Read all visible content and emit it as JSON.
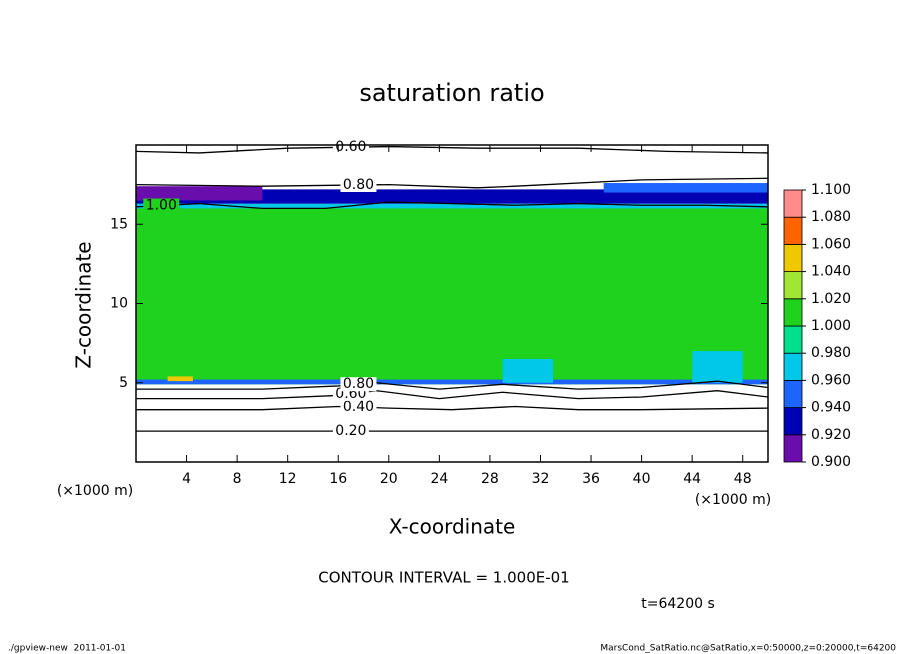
{
  "chart_data": {
    "type": "contour",
    "title": "saturation ratio",
    "x_label": "X-coordinate",
    "y_label": "Z-coordinate",
    "x_unit": "(×1000 m)",
    "xlim": [
      0,
      50
    ],
    "xticks": [
      4,
      8,
      12,
      16,
      20,
      24,
      28,
      32,
      36,
      40,
      44,
      48
    ],
    "ylim": [
      0,
      20
    ],
    "yticks": [
      5,
      10,
      15
    ],
    "levels": [
      {
        "value": 0.9,
        "label": "0.900"
      },
      {
        "value": 0.92,
        "label": "0.920"
      },
      {
        "value": 0.94,
        "label": "0.940"
      },
      {
        "value": 0.96,
        "label": "0.960"
      },
      {
        "value": 0.98,
        "label": "0.980"
      },
      {
        "value": 1.0,
        "label": "1.000"
      },
      {
        "value": 1.02,
        "label": "1.020"
      },
      {
        "value": 1.04,
        "label": "1.040"
      },
      {
        "value": 1.06,
        "label": "1.060"
      },
      {
        "value": 1.08,
        "label": "1.080"
      },
      {
        "value": 1.1,
        "label": "1.100"
      }
    ],
    "colors": [
      "#6a0dad",
      "#0000b4",
      "#1e64ff",
      "#00c8e6",
      "#00e08c",
      "#1ed21e",
      "#a0e632",
      "#f0c800",
      "#ff6400",
      "#ff8c8c"
    ],
    "cells": [
      {
        "x0": 0,
        "x1": 50,
        "z0": 4.9,
        "z1": 16.2,
        "value": 1.01
      },
      {
        "x0": 0,
        "x1": 50,
        "z0": 16.0,
        "z1": 16.3,
        "value": 0.97
      },
      {
        "x0": 0,
        "x1": 50,
        "z0": 16.3,
        "z1": 17.2,
        "value": 0.93
      },
      {
        "x0": 0,
        "x1": 10,
        "z0": 16.5,
        "z1": 17.4,
        "value": 0.91
      },
      {
        "x0": 37,
        "x1": 50,
        "z0": 17.0,
        "z1": 17.6,
        "value": 0.95
      },
      {
        "x0": 0,
        "x1": 50,
        "z0": 4.9,
        "z1": 5.2,
        "value": 0.95
      },
      {
        "x0": 29,
        "x1": 33,
        "z0": 5.0,
        "z1": 6.5,
        "value": 0.97
      },
      {
        "x0": 44,
        "x1": 48,
        "z0": 5.0,
        "z1": 7.0,
        "value": 0.97
      },
      {
        "x0": 2.5,
        "x1": 4.5,
        "z0": 5.1,
        "z1": 5.4,
        "value": 1.05
      }
    ],
    "contours": [
      {
        "level": 0.2,
        "label": "0.20",
        "x": [
          0,
          50
        ],
        "z": [
          1.95,
          1.95
        ]
      },
      {
        "level": 0.4,
        "label": "0.40",
        "x": [
          0,
          10,
          16,
          20,
          25,
          30,
          35,
          40,
          50
        ],
        "z": [
          3.3,
          3.3,
          3.5,
          3.4,
          3.3,
          3.5,
          3.3,
          3.3,
          3.4
        ]
      },
      {
        "level": 0.6,
        "label": "0.60",
        "x": [
          0,
          10,
          16,
          19,
          24,
          29,
          35,
          40,
          46,
          50
        ],
        "z": [
          4.0,
          4.0,
          4.2,
          4.5,
          4.0,
          4.4,
          4.0,
          4.1,
          4.5,
          4.1
        ]
      },
      {
        "level": 0.8,
        "label": "0.80",
        "x": [
          0,
          10,
          16,
          19,
          24,
          29,
          35,
          40,
          46,
          50
        ],
        "z": [
          4.6,
          4.6,
          4.8,
          5.0,
          4.6,
          4.9,
          4.6,
          4.7,
          5.1,
          4.7
        ]
      },
      {
        "level": 1.0,
        "label": "1.00",
        "x": [
          0,
          5,
          10,
          15,
          20,
          25,
          30,
          35,
          40,
          45,
          50
        ],
        "z": [
          16.1,
          16.3,
          16.0,
          16.0,
          16.4,
          16.3,
          16.2,
          16.3,
          16.2,
          16.2,
          16.1
        ]
      },
      {
        "level": 0.8,
        "label": "0.80",
        "x": [
          0,
          10,
          20,
          27,
          30,
          40,
          50
        ],
        "z": [
          17.5,
          17.4,
          17.5,
          17.3,
          17.4,
          17.8,
          17.9
        ]
      },
      {
        "level": 0.6,
        "label": "0.60",
        "x": [
          0,
          5,
          12,
          20,
          27,
          35,
          42,
          50
        ],
        "z": [
          19.6,
          19.5,
          19.8,
          19.9,
          19.8,
          19.8,
          19.6,
          19.5
        ]
      }
    ],
    "contour_interval": "CONTOUR INTERVAL = 1.000E-01",
    "time": "t=64200 s",
    "footer_left": "./gpview-new  2011-01-01",
    "footer_right": "MarsCond_SatRatio.nc@SatRatio,x=0:50000,z=0:20000,t=64200"
  }
}
